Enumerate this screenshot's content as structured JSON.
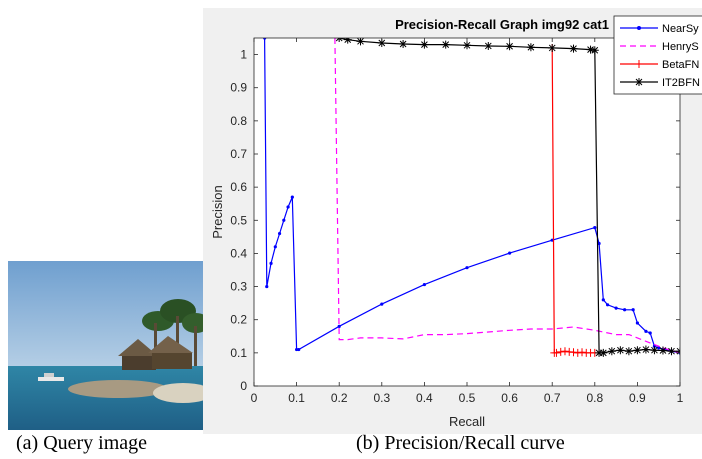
{
  "captions": {
    "a": "(a) Query image",
    "b": "(b) Precision/Recall curve"
  },
  "chart_data": {
    "type": "line",
    "title": "Precision-Recall Graph img92 cat1",
    "xlabel": "Recall",
    "ylabel": "Precision",
    "xlim": [
      0,
      1
    ],
    "ylim": [
      0,
      1.05
    ],
    "xticks": [
      0,
      0.1,
      0.2,
      0.3,
      0.4,
      0.5,
      0.6,
      0.7,
      0.8,
      0.9,
      1
    ],
    "yticks": [
      0,
      0.1,
      0.2,
      0.3,
      0.4,
      0.5,
      0.6,
      0.7,
      0.8,
      0.9,
      1
    ],
    "grid": false,
    "legend_position": "top-right",
    "series": [
      {
        "name": "NearSy",
        "color": "#0000ff",
        "dash": "solid",
        "marker": "dot",
        "x": [
          0.025,
          0.03,
          0.04,
          0.05,
          0.06,
          0.07,
          0.08,
          0.09,
          0.1,
          0.105,
          0.2,
          0.3,
          0.4,
          0.5,
          0.6,
          0.7,
          0.8,
          0.81,
          0.82,
          0.83,
          0.85,
          0.87,
          0.89,
          0.9,
          0.92,
          0.93,
          0.94,
          0.95,
          0.98,
          1.0
        ],
        "y": [
          1.05,
          0.3,
          0.37,
          0.42,
          0.46,
          0.5,
          0.54,
          0.57,
          0.11,
          0.11,
          0.18,
          0.247,
          0.306,
          0.357,
          0.401,
          0.44,
          0.478,
          0.43,
          0.26,
          0.245,
          0.235,
          0.23,
          0.23,
          0.19,
          0.165,
          0.16,
          0.12,
          0.115,
          0.105,
          0.1
        ]
      },
      {
        "name": "HenryS",
        "color": "#ff00ff",
        "dash": "dashed",
        "marker": "none",
        "x": [
          0.19,
          0.2,
          0.22,
          0.25,
          0.3,
          0.35,
          0.4,
          0.45,
          0.5,
          0.55,
          0.6,
          0.65,
          0.7,
          0.75,
          0.8,
          0.85,
          0.88,
          0.9,
          0.92,
          0.94,
          0.95,
          0.96,
          1.0
        ],
        "y": [
          1.05,
          0.14,
          0.14,
          0.145,
          0.145,
          0.142,
          0.155,
          0.155,
          0.158,
          0.163,
          0.168,
          0.172,
          0.172,
          0.178,
          0.168,
          0.155,
          0.155,
          0.145,
          0.135,
          0.125,
          0.12,
          0.115,
          0.1
        ]
      },
      {
        "name": "BetaFN",
        "color": "#ff0000",
        "dash": "solid",
        "marker": "plus",
        "x": [
          0.7,
          0.705,
          0.71,
          0.72,
          0.73,
          0.74,
          0.75,
          0.76,
          0.77,
          0.78,
          0.79,
          0.8
        ],
        "y": [
          1.02,
          0.1,
          0.1,
          0.103,
          0.105,
          0.103,
          0.102,
          0.1,
          0.102,
          0.1,
          0.1,
          0.1
        ]
      },
      {
        "name": "IT2BFN",
        "color": "#000000",
        "dash": "solid",
        "marker": "asterisk",
        "x": [
          0.2,
          0.22,
          0.25,
          0.3,
          0.35,
          0.4,
          0.45,
          0.5,
          0.55,
          0.6,
          0.65,
          0.7,
          0.75,
          0.79,
          0.8,
          0.81,
          0.82,
          0.84,
          0.86,
          0.88,
          0.9,
          0.92,
          0.94,
          0.96,
          0.98,
          1.0
        ],
        "y": [
          1.05,
          1.045,
          1.04,
          1.035,
          1.032,
          1.03,
          1.03,
          1.028,
          1.026,
          1.025,
          1.022,
          1.02,
          1.018,
          1.015,
          1.013,
          0.1,
          0.1,
          0.105,
          0.108,
          0.105,
          0.108,
          0.11,
          0.108,
          0.107,
          0.105,
          0.105
        ]
      }
    ]
  }
}
